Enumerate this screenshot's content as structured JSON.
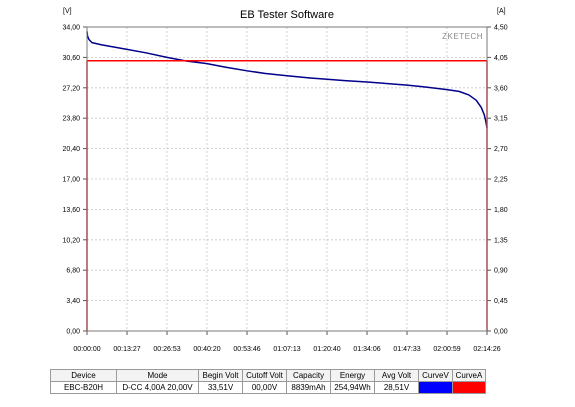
{
  "chart_data": {
    "type": "line",
    "title": "EB Tester Software",
    "watermark": "ZKETECH",
    "left_axis": {
      "unit": "[V]",
      "range": [
        0,
        34
      ],
      "ticks": [
        "0,00",
        "3,40",
        "6,80",
        "10,20",
        "13,60",
        "17,00",
        "20,40",
        "23,80",
        "27,20",
        "30,60",
        "34,00"
      ]
    },
    "right_axis": {
      "unit": "[A]",
      "range": [
        0,
        4.5
      ],
      "ticks": [
        "0,00",
        "0,45",
        "0,90",
        "1,35",
        "1,80",
        "2,25",
        "2,70",
        "3,15",
        "3,60",
        "4,05",
        "4,50"
      ]
    },
    "x_axis": {
      "range_seconds": [
        0,
        8066
      ],
      "ticks": [
        "00:00:00",
        "00:13:27",
        "00:26:53",
        "00:40:20",
        "00:53:46",
        "01:07:13",
        "01:20:40",
        "01:34:06",
        "01:47:33",
        "02:00:59",
        "02:14:26"
      ]
    },
    "grid": true,
    "series": [
      {
        "axis": "left",
        "color": "#00008b",
        "points": [
          [
            0,
            33.51
          ],
          [
            10,
            33.0
          ],
          [
            40,
            32.6
          ],
          [
            100,
            32.25
          ],
          [
            300,
            32.0
          ],
          [
            807,
            31.5
          ],
          [
            1200,
            31.1
          ],
          [
            1613,
            30.6
          ],
          [
            2000,
            30.2
          ],
          [
            2420,
            29.9
          ],
          [
            2800,
            29.5
          ],
          [
            3227,
            29.1
          ],
          [
            3600,
            28.8
          ],
          [
            4033,
            28.55
          ],
          [
            4500,
            28.3
          ],
          [
            4840,
            28.15
          ],
          [
            5200,
            28.0
          ],
          [
            5647,
            27.85
          ],
          [
            6000,
            27.7
          ],
          [
            6453,
            27.5
          ],
          [
            6800,
            27.3
          ],
          [
            7260,
            27.0
          ],
          [
            7500,
            26.8
          ],
          [
            7700,
            26.4
          ],
          [
            7850,
            25.8
          ],
          [
            7950,
            25.0
          ],
          [
            8010,
            24.2
          ],
          [
            8040,
            23.5
          ],
          [
            8066,
            22.7
          ]
        ]
      },
      {
        "axis": "right",
        "color": "#ff0000",
        "points": [
          [
            0,
            0
          ],
          [
            0,
            4.0
          ],
          [
            8066,
            4.0
          ],
          [
            8066,
            0
          ]
        ]
      }
    ]
  },
  "table": {
    "headers": [
      "Device",
      "Mode",
      "Begin Volt",
      "Cutoff Volt",
      "Capacity",
      "Energy",
      "Avg Volt",
      "CurveV",
      "CurveA"
    ],
    "values": [
      "EBC-B20H",
      "D-CC  4,00A  20,00V",
      "33,51V",
      "00,00V",
      "8839mAh",
      "254,94Wh",
      "28,51V",
      "",
      ""
    ],
    "curve_colors": {
      "CurveV": "#0000ff",
      "CurveA": "#ff0000"
    }
  }
}
